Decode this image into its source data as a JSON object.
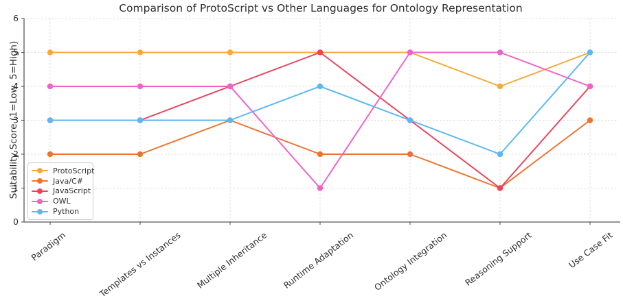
{
  "chart_data": {
    "type": "line",
    "title": "Comparison of ProtoScript vs Other Languages for Ontology Representation",
    "xlabel": "",
    "ylabel": "Suitability Score (1=Low, 5=High)",
    "categories": [
      "Paradigm",
      "Templates vs Instances",
      "Multiple Inheritance",
      "Runtime Adaptation",
      "Ontology Integration",
      "Reasoning Support",
      "Use Case Fit"
    ],
    "series": [
      {
        "name": "ProtoScript",
        "color": "#F5A93C",
        "values": [
          5,
          5,
          5,
          5,
          5,
          4,
          5
        ]
      },
      {
        "name": "Java/C#",
        "color": "#ED7430",
        "values": [
          2,
          2,
          3,
          2,
          2,
          1,
          3
        ]
      },
      {
        "name": "JavaScript",
        "color": "#E8465C",
        "values": [
          3,
          3,
          4,
          5,
          3,
          1,
          4
        ]
      },
      {
        "name": "OWL",
        "color": "#EF63C8",
        "values": [
          4,
          4,
          4,
          1,
          5,
          5,
          4
        ]
      },
      {
        "name": "Python",
        "color": "#5BB8F0",
        "values": [
          3,
          3,
          3,
          4,
          3,
          2,
          5
        ]
      }
    ],
    "ylim": [
      0,
      6
    ],
    "yticks": [
      0,
      1,
      2,
      3,
      4,
      5,
      6
    ],
    "grid": true,
    "grid_color": "#dcdcdc",
    "axis_color": "#565656",
    "legend_position": "lower left",
    "marker": "circle"
  }
}
